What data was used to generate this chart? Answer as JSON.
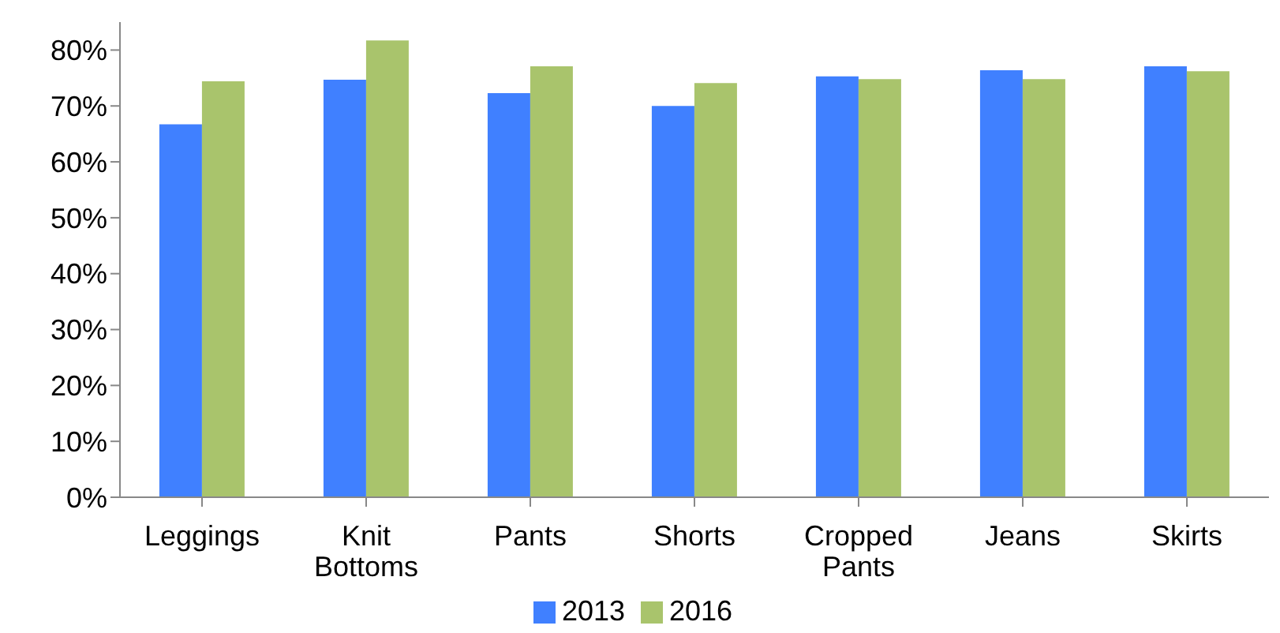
{
  "chart_data": {
    "type": "bar",
    "categories": [
      "Leggings",
      "Knit Bottoms",
      "Pants",
      "Shorts",
      "Cropped Pants",
      "Jeans",
      "Skirts"
    ],
    "series": [
      {
        "name": "2013",
        "color": "#4080ff",
        "values": [
          66.7,
          74.7,
          72.3,
          70,
          75.3,
          76.4,
          77.1
        ]
      },
      {
        "name": "2016",
        "color": "#a9c46c",
        "values": [
          74.4,
          81.7,
          77.1,
          74.1,
          74.8,
          74.8,
          76.2
        ]
      }
    ],
    "ylim": [
      0,
      85
    ],
    "yticks": [
      {
        "value": 0,
        "label": "0%"
      },
      {
        "value": 10,
        "label": "10%"
      },
      {
        "value": 20,
        "label": "20%"
      },
      {
        "value": 30,
        "label": "30%"
      },
      {
        "value": 40,
        "label": "40%"
      },
      {
        "value": 50,
        "label": "50%"
      },
      {
        "value": 60,
        "label": "60%"
      },
      {
        "value": 70,
        "label": "70%"
      },
      {
        "value": 80,
        "label": "80%"
      }
    ],
    "grid": false,
    "legend": "bottom"
  }
}
